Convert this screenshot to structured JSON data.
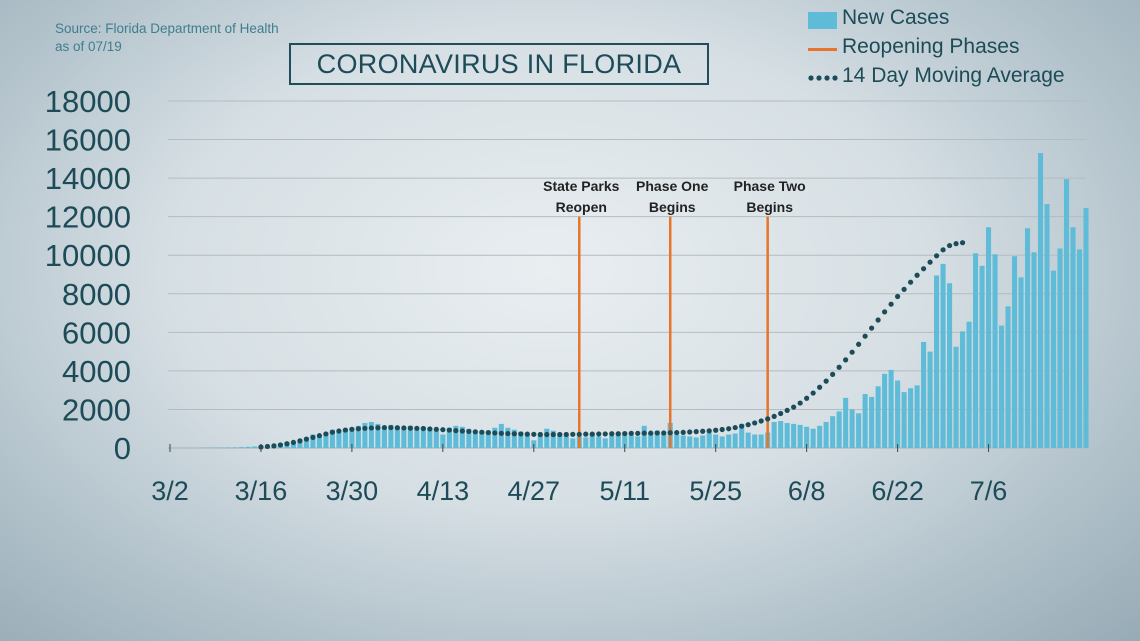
{
  "source": {
    "line1": "Source: Florida Department of Health",
    "line2": "as of 07/19"
  },
  "title": "CORONAVIRUS IN FLORIDA",
  "legend": {
    "new_cases": "New Cases",
    "reopening": "Reopening Phases",
    "moving_avg": "14 Day Moving Average"
  },
  "colors": {
    "bar": "#5fbcd8",
    "phase_line": "#e8742b",
    "moving_avg": "#1d4b58",
    "text": "#1d4b58",
    "grid": "#b4bcc0"
  },
  "chart_data": {
    "type": "bar",
    "title": "CORONAVIRUS IN FLORIDA",
    "x_start": "3/2",
    "x_end": "7/18",
    "x_tick_labels": [
      "3/2",
      "3/16",
      "3/30",
      "4/13",
      "4/27",
      "5/11",
      "5/25",
      "6/8",
      "6/22",
      "7/6"
    ],
    "y_tick_labels": [
      "0",
      "2000",
      "4000",
      "6000",
      "8000",
      "10000",
      "12000",
      "14000",
      "16000",
      "18000"
    ],
    "ylim": [
      0,
      18000
    ],
    "grid": true,
    "legend_position": "top-right",
    "series": [
      {
        "name": "New Cases",
        "type": "bar",
        "values": [
          0,
          0,
          0,
          0,
          0,
          10,
          15,
          20,
          20,
          25,
          30,
          45,
          60,
          80,
          110,
          130,
          170,
          250,
          300,
          270,
          400,
          550,
          700,
          650,
          800,
          950,
          850,
          1000,
          1050,
          1150,
          1300,
          1350,
          1250,
          1100,
          1200,
          1050,
          1000,
          1150,
          1050,
          1100,
          1050,
          950,
          700,
          1050,
          1150,
          1100,
          1000,
          900,
          850,
          900,
          1050,
          1250,
          1050,
          950,
          850,
          650,
          400,
          650,
          1000,
          900,
          750,
          650,
          500,
          600,
          550,
          700,
          600,
          500,
          650,
          750,
          800,
          700,
          600,
          1150,
          800,
          900,
          750,
          1300,
          700,
          650,
          600,
          550,
          650,
          800,
          700,
          600,
          700,
          750,
          1250,
          800,
          700,
          700,
          800,
          1350,
          1400,
          1300,
          1250,
          1200,
          1100,
          1000,
          1150,
          1350,
          1650,
          1900,
          2600,
          2000,
          1800,
          2800,
          2650,
          3200,
          3850,
          4050,
          3500,
          2900,
          3100,
          3250,
          5500,
          5000,
          8950,
          9550,
          8550,
          5250,
          6050,
          6550,
          10100,
          9450,
          11450,
          10050,
          6350,
          7350,
          9950,
          8850,
          11400,
          10150,
          15300,
          12650,
          9200,
          10350,
          13950,
          11450,
          10300,
          12450
        ]
      },
      {
        "name": "14 Day Moving Average",
        "type": "dotted-line",
        "start_index": 14,
        "values": [
          50,
          80,
          110,
          160,
          220,
          290,
          370,
          460,
          550,
          640,
          730,
          820,
          880,
          930,
          970,
          1000,
          1020,
          1040,
          1050,
          1060,
          1060,
          1050,
          1040,
          1030,
          1020,
          1010,
          990,
          970,
          950,
          930,
          900,
          880,
          860,
          840,
          820,
          800,
          780,
          760,
          750,
          740,
          730,
          720,
          710,
          700,
          700,
          700,
          700,
          700,
          710,
          710,
          720,
          720,
          730,
          730,
          740,
          740,
          750,
          760,
          760,
          770,
          770,
          780,
          780,
          790,
          800,
          810,
          830,
          850,
          870,
          890,
          920,
          960,
          1000,
          1060,
          1130,
          1210,
          1300,
          1400,
          1510,
          1640,
          1790,
          1950,
          2120,
          2330,
          2580,
          2850,
          3150,
          3470,
          3820,
          4190,
          4570,
          4970,
          5380,
          5800,
          6220,
          6640,
          7060,
          7460,
          7860,
          8230,
          8600,
          8960,
          9300,
          9640,
          9970,
          10280,
          10500,
          10600,
          10650
        ]
      }
    ],
    "annotations": [
      {
        "label_line1": "State Parks",
        "label_line2": "Reopen",
        "x_index": 63,
        "top_value": 12000
      },
      {
        "label_line1": "Phase One",
        "label_line2": "Begins",
        "x_index": 77,
        "top_value": 12000
      },
      {
        "label_line1": "Phase Two",
        "label_line2": "Begins",
        "x_index": 92,
        "top_value": 12000
      }
    ]
  }
}
